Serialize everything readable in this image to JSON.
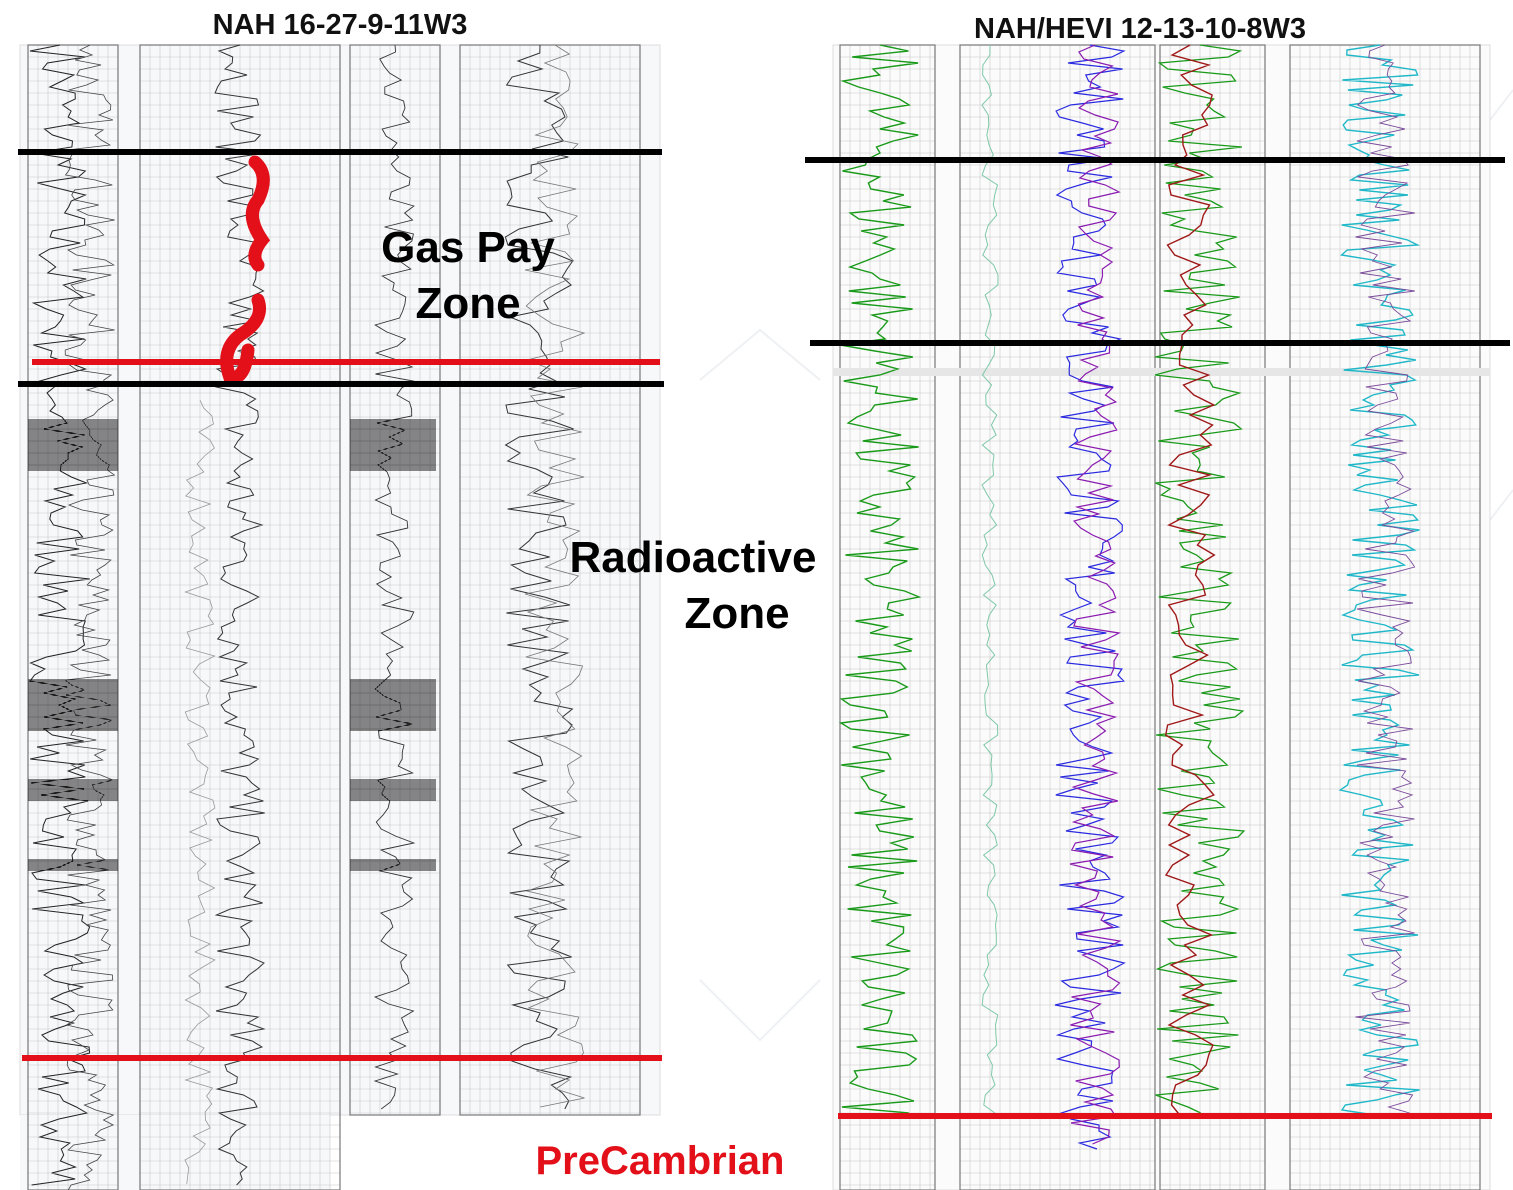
{
  "wells": [
    {
      "title": "NAH 16-27-9-11W3"
    },
    {
      "title": "NAH/HEVI 12-13-10-8W3"
    }
  ],
  "labels": {
    "gas_pay": [
      "Gas Pay",
      "Zone"
    ],
    "radioactive": [
      "Radioactive",
      "Zone"
    ],
    "precambrian": "PreCambrian"
  }
}
